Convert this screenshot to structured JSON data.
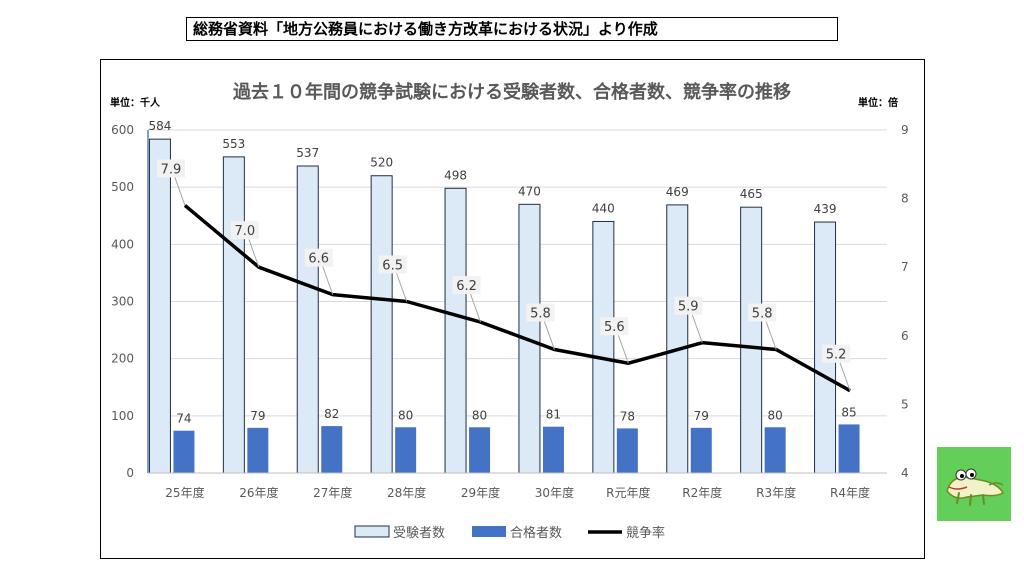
{
  "header": {
    "source_text": "総務省資料「地方公務員における働き方改革における状況」より作成"
  },
  "chart_data": {
    "type": "bar",
    "title": "過去１０年間の競争試験における受験者数、合格者数、競争率の推移",
    "y_left_unit": "単位：千人",
    "y_right_unit": "単位：倍",
    "categories": [
      "25年度",
      "26年度",
      "27年度",
      "28年度",
      "29年度",
      "30年度",
      "R元年度",
      "R2年度",
      "R3年度",
      "R4年度"
    ],
    "series": [
      {
        "name": "受験者数",
        "type": "bar",
        "axis": "left",
        "color": "#dce9f6",
        "edge": "#1f2f45",
        "values": [
          584,
          553,
          537,
          520,
          498,
          470,
          440,
          469,
          465,
          439
        ]
      },
      {
        "name": "合格者数",
        "type": "bar",
        "axis": "left",
        "color": "#4472c4",
        "values": [
          74,
          79,
          82,
          80,
          80,
          81,
          78,
          79,
          80,
          85
        ]
      },
      {
        "name": "競争率",
        "type": "line",
        "axis": "right",
        "color": "#000000",
        "values": [
          7.9,
          7.0,
          6.6,
          6.5,
          6.2,
          5.8,
          5.6,
          5.9,
          5.8,
          5.2
        ]
      }
    ],
    "y_left": {
      "min": 0,
      "max": 600,
      "ticks": [
        "0",
        "100",
        "200",
        "300",
        "400",
        "500",
        "600"
      ]
    },
    "y_right": {
      "min": 4,
      "max": 9,
      "ticks": [
        "4",
        "5",
        "6",
        "7",
        "8",
        "9"
      ]
    },
    "grid": true,
    "legend_position": "bottom"
  },
  "mascot": {
    "icon": "crocodile-mascot-icon",
    "background": "#63cf5a"
  }
}
